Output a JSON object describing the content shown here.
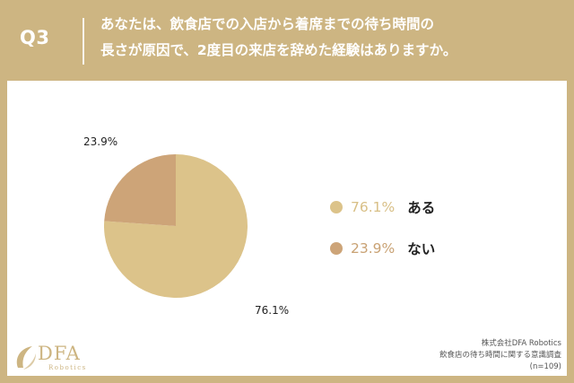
{
  "header": {
    "q_label": "Q3",
    "question_line1": "あなたは、飲食店での入店から着席までの待ち時間の",
    "question_line2": "長さが原因で、2度目の来店を辞めた経験はありますか。"
  },
  "chart_data": {
    "type": "pie",
    "categories": [
      "ある",
      "ない"
    ],
    "values": [
      76.1,
      23.9
    ],
    "value_labels": [
      "76.1%",
      "23.9%"
    ],
    "colors": [
      "#dcc38a",
      "#cda478"
    ],
    "legend_placement": "right"
  },
  "legend": {
    "items": [
      {
        "pct": "76.1%",
        "label": "ある",
        "color": "#dcc38a",
        "pct_color": "#d8bf86"
      },
      {
        "pct": "23.9%",
        "label": "ない",
        "color": "#cda478",
        "pct_color": "#c9a274"
      }
    ]
  },
  "footer": {
    "logo_text": "DFA",
    "logo_sub": "Robotics",
    "source_line1": "株式会社DFA Robotics",
    "source_line2": "飲食店の待ち時間に関する意識調査",
    "source_line3": "(n=109)"
  }
}
